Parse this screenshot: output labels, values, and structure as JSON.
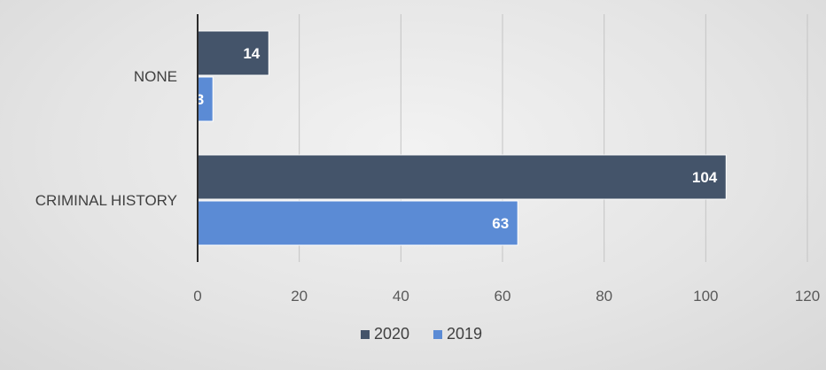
{
  "chart_data": {
    "type": "bar",
    "orientation": "horizontal",
    "title": "",
    "xlabel": "",
    "ylabel": "",
    "categories": [
      "NONE",
      "CRIMINAL HISTORY"
    ],
    "series": [
      {
        "name": "2020",
        "values": [
          14,
          104
        ],
        "color": "#44546a"
      },
      {
        "name": "2019",
        "values": [
          3,
          63
        ],
        "color": "#5b8bd5"
      }
    ],
    "xlim": [
      0,
      120
    ],
    "x_ticks": [
      "0",
      "20",
      "40",
      "60",
      "80",
      "100",
      "120"
    ],
    "grid": true,
    "legend_position": "bottom",
    "data_labels": true
  }
}
